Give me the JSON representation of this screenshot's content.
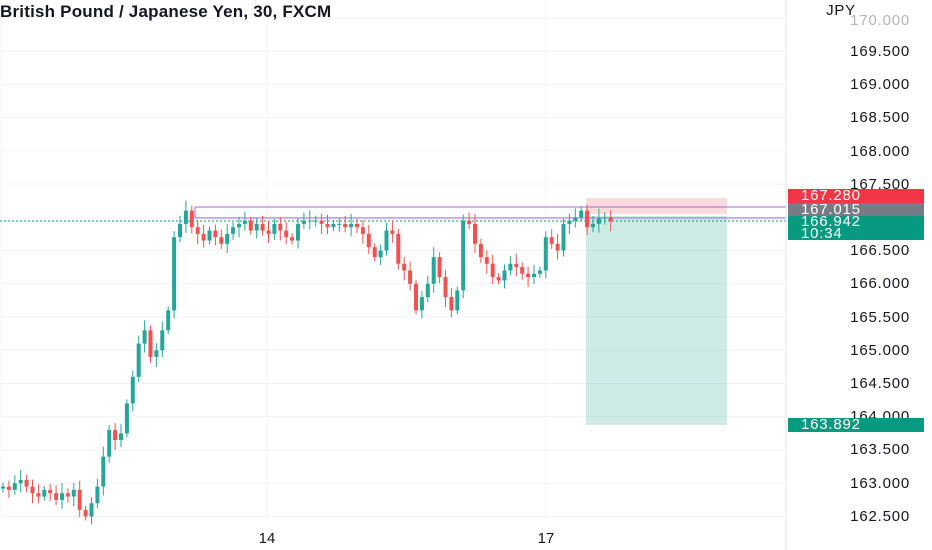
{
  "header": {
    "title": "British Pound / Japanese Yen, 30, FXCM"
  },
  "price_axis": {
    "currency": "JPY",
    "top_partial_label": "170.000",
    "labels": [
      "169.500",
      "169.000",
      "168.500",
      "168.000",
      "167.500",
      "166.500",
      "166.000",
      "165.500",
      "165.000",
      "164.500",
      "164.000",
      "163.500",
      "163.000",
      "162.500"
    ]
  },
  "time_axis": {
    "labels": [
      "14",
      "17"
    ]
  },
  "price_tags": {
    "stop": {
      "value": "167.280",
      "color": "#f23645"
    },
    "entry": {
      "value": "167.015",
      "color": "#787b86"
    },
    "current": {
      "value": "166.942",
      "color": "#089981"
    },
    "countdown": {
      "value": "10:34",
      "color": "#089981"
    },
    "target": {
      "value": "163.892",
      "color": "#089981"
    }
  },
  "colors": {
    "up": "#26a69a",
    "down": "#ef5350",
    "grid": "#f0f3fa",
    "stop_zone": "rgba(242,54,69,0.18)",
    "target_zone": "rgba(8,153,129,0.2)",
    "level_line": "#9c6ade"
  },
  "chart_data": {
    "type": "candlestick",
    "symbol": "GBPJPY",
    "timeframe": "30",
    "ylim": [
      162.3,
      170.0
    ],
    "closes": [
      162.95,
      162.9,
      163.0,
      163.05,
      162.95,
      162.85,
      162.8,
      162.9,
      162.85,
      162.75,
      162.85,
      162.8,
      162.9,
      162.6,
      162.5,
      162.7,
      162.95,
      163.4,
      163.8,
      163.65,
      163.75,
      164.2,
      164.6,
      165.1,
      165.3,
      164.9,
      165.0,
      165.3,
      165.6,
      166.7,
      166.9,
      167.1,
      166.85,
      166.75,
      166.65,
      166.8,
      166.7,
      166.6,
      166.75,
      166.85,
      166.9,
      166.95,
      166.8,
      166.9,
      166.8,
      166.75,
      166.9,
      166.8,
      166.7,
      166.65,
      166.9,
      166.95,
      166.95,
      166.95,
      166.9,
      166.85,
      166.9,
      166.9,
      166.85,
      166.9,
      166.85,
      166.75,
      166.55,
      166.4,
      166.5,
      166.8,
      166.75,
      166.3,
      166.2,
      166.0,
      165.6,
      165.8,
      166.0,
      166.4,
      166.1,
      165.8,
      165.6,
      165.9,
      166.95,
      166.9,
      166.6,
      166.4,
      166.3,
      166.1,
      166.05,
      166.2,
      166.3,
      166.25,
      166.15,
      166.1,
      166.15,
      166.2,
      166.7,
      166.6,
      166.5,
      166.9,
      166.95,
      167.0,
      167.1,
      166.85,
      166.9,
      166.98,
      167.0,
      166.94
    ]
  }
}
